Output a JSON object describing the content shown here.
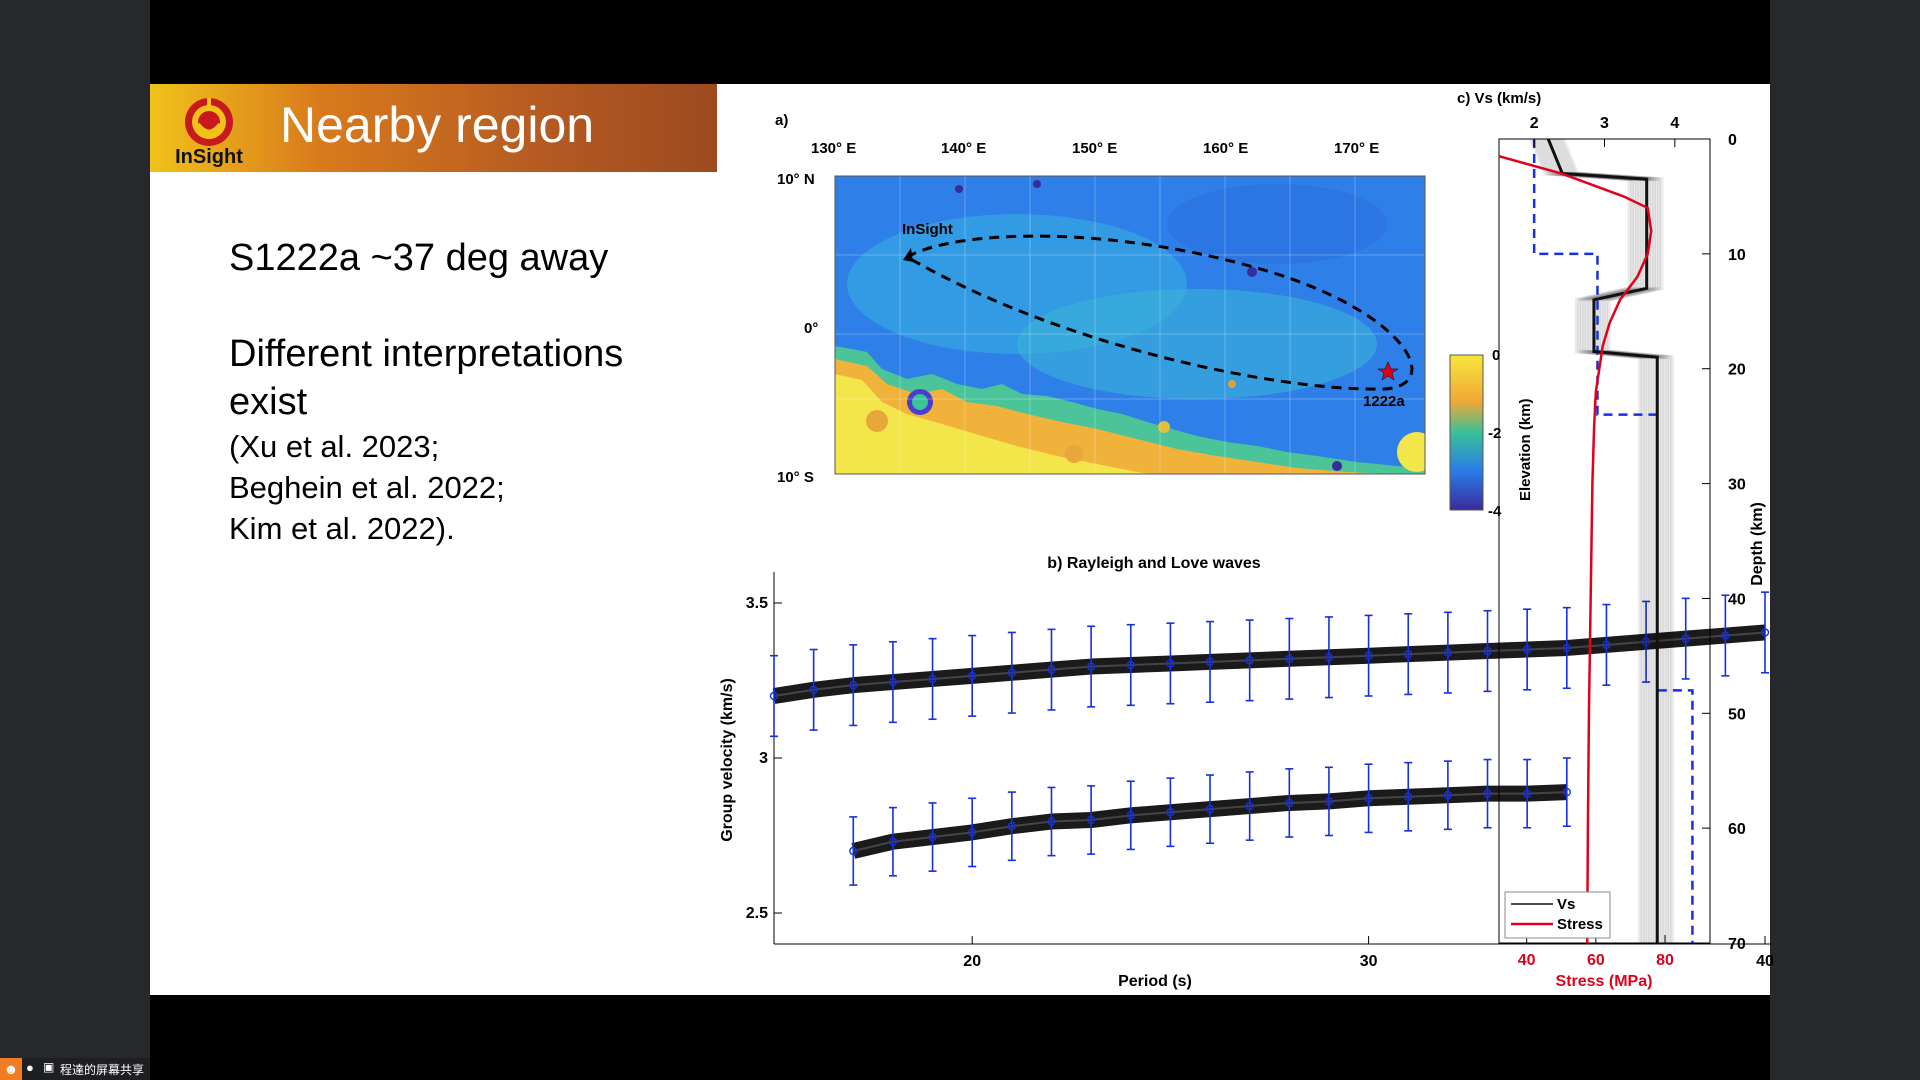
{
  "title": "Nearby region",
  "logo_text": "InSight",
  "bullets": {
    "line1": "S1222a ~37 deg away",
    "line2": "Different interpretations",
    "line3": "exist",
    "cite1": "(Xu et al. 2023;",
    "cite2": "Beghein et al. 2022;",
    "cite3": "Kim et al. 2022)."
  },
  "panel_a": {
    "label": "a)",
    "lon_ticks": [
      "130° E",
      "140° E",
      "150° E",
      "160° E",
      "170° E"
    ],
    "lat_ticks": [
      "10° N",
      "0°",
      "10° S"
    ],
    "station_label": "InSight",
    "event_label": "1222a",
    "colorbar": {
      "label": "Elevation (km)",
      "ticks": [
        "0",
        "-2",
        "-4"
      ]
    }
  },
  "chart_data": [
    {
      "type": "line",
      "title": "b) Rayleigh and Love waves",
      "xlabel": "Period (s)",
      "ylabel": "Group velocity (km/s)",
      "xlim": [
        15,
        40
      ],
      "ylim": [
        2.4,
        3.6
      ],
      "xticks": [
        "20",
        "30",
        "40"
      ],
      "yticks": [
        "2.5",
        "3",
        "3.5"
      ],
      "series": [
        {
          "x": [
            15,
            16,
            17,
            18,
            19,
            20,
            21,
            22,
            23,
            24,
            25,
            26,
            27,
            28,
            29,
            30,
            31,
            32,
            33,
            34,
            35,
            36,
            37,
            38,
            39,
            40
          ],
          "y": [
            3.2,
            3.22,
            3.235,
            3.245,
            3.255,
            3.265,
            3.275,
            3.285,
            3.295,
            3.3,
            3.305,
            3.31,
            3.315,
            3.32,
            3.325,
            3.33,
            3.335,
            3.34,
            3.345,
            3.35,
            3.355,
            3.365,
            3.375,
            3.385,
            3.395,
            3.405
          ],
          "err": 0.13
        },
        {
          "x": [
            17,
            18,
            19,
            20,
            21,
            22,
            23,
            24,
            25,
            26,
            27,
            28,
            29,
            30,
            31,
            32,
            33,
            34,
            35
          ],
          "y": [
            2.7,
            2.73,
            2.745,
            2.76,
            2.78,
            2.795,
            2.8,
            2.815,
            2.825,
            2.835,
            2.845,
            2.855,
            2.86,
            2.87,
            2.875,
            2.88,
            2.885,
            2.885,
            2.89
          ],
          "err": 0.11
        }
      ]
    },
    {
      "type": "line",
      "title": "c) Vs (km/s)",
      "xlabel": "Stress (MPa)",
      "ylabel": "Depth (km)",
      "xticks_top": [
        "2",
        "3",
        "4"
      ],
      "xticks_bottom": [
        "40",
        "60",
        "80"
      ],
      "yticks": [
        "0",
        "10",
        "20",
        "30",
        "40",
        "50",
        "60",
        "70"
      ],
      "legend": [
        "Vs",
        "Stress"
      ],
      "legend_position": "bottom-left",
      "vs_range": [
        1.5,
        4.5
      ],
      "stress_range": [
        32,
        93
      ],
      "ylim": [
        0,
        70
      ],
      "colors": {
        "vs": "#111111",
        "stress": "#e0001b",
        "model": "#1530e0"
      },
      "vs_profile": {
        "depth": [
          0,
          3,
          3.5,
          13,
          14,
          18.5,
          19,
          70
        ],
        "vs": [
          2.2,
          2.4,
          3.6,
          3.6,
          2.85,
          2.85,
          3.75,
          3.75
        ]
      },
      "stress_profile": {
        "depth": [
          1.5,
          3,
          5,
          6,
          8,
          10,
          12,
          14,
          16,
          18,
          20,
          22,
          25,
          30,
          40,
          50,
          60,
          70
        ],
        "stress": [
          32,
          50,
          68,
          75,
          76,
          75,
          72,
          67,
          64,
          62,
          61,
          60,
          59.5,
          59,
          58.5,
          58,
          57.7,
          57.5
        ]
      },
      "dashed_model": {
        "depth": [
          0,
          10,
          10,
          24,
          24,
          48,
          48,
          70
        ],
        "vs": [
          2.0,
          2.0,
          2.9,
          2.9,
          3.75,
          3.75,
          4.25,
          4.25
        ]
      }
    }
  ],
  "taskbar": {
    "share_label": "程達的屏幕共享"
  }
}
